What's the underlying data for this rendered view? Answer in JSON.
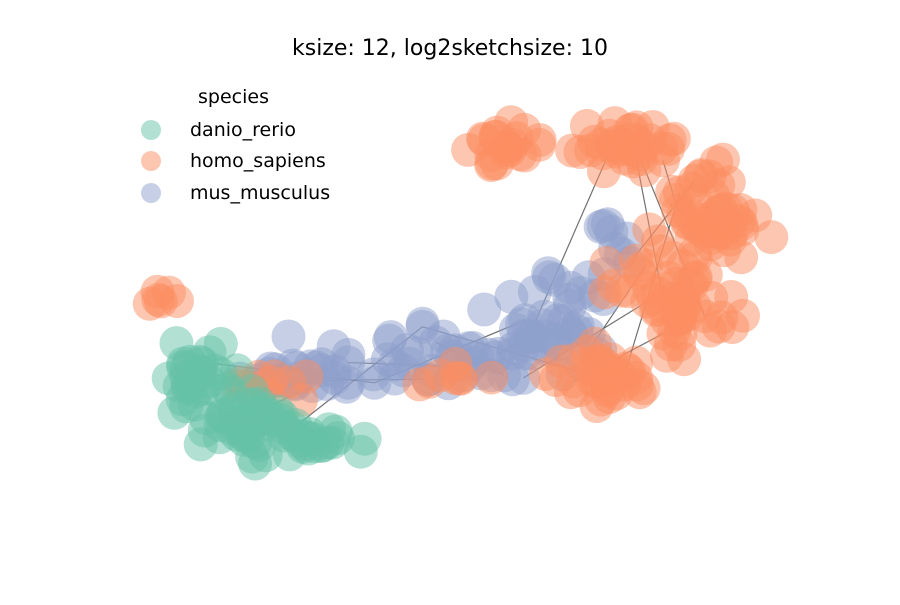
{
  "chart_data": {
    "type": "scatter",
    "subtype": "network-graph",
    "title": "ksize: 12, log2sketchsize: 10",
    "axes_visible": false,
    "grid": false,
    "legend": {
      "title": "species",
      "placement": "top-left"
    },
    "series": [
      {
        "name": "danio_rerio",
        "color": "#66c2a5"
      },
      {
        "name": "homo_sapiens",
        "color": "#fc8d62"
      },
      {
        "name": "mus_musculus",
        "color": "#8da0cb"
      }
    ],
    "edge_color": "#333333"
  }
}
